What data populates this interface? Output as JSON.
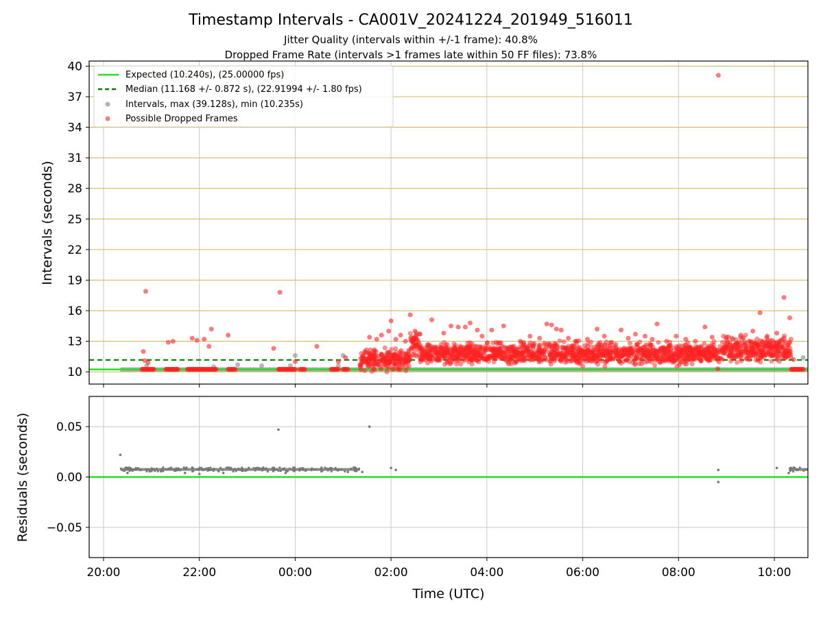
{
  "figure": {
    "title": "Timestamp Intervals - CA001V_20241224_201949_516011",
    "subtitle_1": "Jitter Quality (intervals within +/-1 frame): 40.8%",
    "subtitle_2": "Dropped Frame Rate (intervals >1 frames late within 50 FF files): 73.8%"
  },
  "chart_data": [
    {
      "type": "scatter",
      "xlabel": "",
      "ylabel": "Intervals (seconds)",
      "x_unit": "hours (UTC, 24 = midnight)",
      "xlim": [
        19.7,
        34.7
      ],
      "ylim": [
        8.8,
        40.5
      ],
      "y_ticks": [
        10,
        13,
        16,
        19,
        22,
        25,
        28,
        31,
        34,
        37,
        40
      ],
      "y_tick_labels": [
        "10",
        "13",
        "16",
        "19",
        "22",
        "25",
        "28",
        "31",
        "34",
        "37",
        "40"
      ],
      "x_ticks": [
        20,
        22,
        24,
        26,
        28,
        30,
        32,
        34
      ],
      "grid": true,
      "horizontal_grid_color": "#d2b864",
      "legend_position": "top-left",
      "legend": {
        "expected": "Expected (10.240s), (25.00000 fps)",
        "median": "Median (11.168 +/- 0.872 s), (22.91994 +/- 1.80 fps)",
        "intervals": "Intervals, max (39.128s), min (10.235s)",
        "dropped": "Possible Dropped Frames"
      },
      "expected_line": {
        "y": 10.24,
        "color": "#22e022"
      },
      "median_line": {
        "y": 11.168,
        "color": "#007a00"
      },
      "intervals_color": "#888888",
      "dropped_color": "#ff2222",
      "interval_baseline": {
        "x_start": 20.35,
        "x_end": 34.7,
        "y": 10.24
      },
      "normal_intervals": [
        {
          "x": 20.9,
          "y": 10.6
        },
        {
          "x": 22.3,
          "y": 10.5
        },
        {
          "x": 22.8,
          "y": 10.7
        },
        {
          "x": 23.3,
          "y": 10.6
        },
        {
          "x": 23.9,
          "y": 10.6
        },
        {
          "x": 24.0,
          "y": 11.6
        },
        {
          "x": 24.9,
          "y": 10.6
        },
        {
          "x": 25.0,
          "y": 11.6
        },
        {
          "x": 34.6,
          "y": 11.4
        }
      ],
      "dropped_frames": [
        {
          "x": 20.83,
          "y": 12.0
        },
        {
          "x": 20.88,
          "y": 17.9
        },
        {
          "x": 20.86,
          "y": 11.1
        },
        {
          "x": 20.93,
          "y": 10.9
        },
        {
          "x": 21.35,
          "y": 12.9
        },
        {
          "x": 21.45,
          "y": 13.0
        },
        {
          "x": 21.85,
          "y": 13.3
        },
        {
          "x": 21.95,
          "y": 13.1
        },
        {
          "x": 22.1,
          "y": 13.2
        },
        {
          "x": 22.2,
          "y": 12.5
        },
        {
          "x": 22.25,
          "y": 14.2
        },
        {
          "x": 22.6,
          "y": 13.6
        },
        {
          "x": 23.55,
          "y": 12.3
        },
        {
          "x": 23.68,
          "y": 17.8
        },
        {
          "x": 24.0,
          "y": 11.0
        },
        {
          "x": 24.45,
          "y": 12.5
        },
        {
          "x": 24.9,
          "y": 11.0
        },
        {
          "x": 25.05,
          "y": 11.4
        },
        {
          "x": 25.55,
          "y": 13.4
        },
        {
          "x": 25.7,
          "y": 13.2
        },
        {
          "x": 25.8,
          "y": 13.6
        },
        {
          "x": 25.95,
          "y": 14.0
        },
        {
          "x": 26.0,
          "y": 15.0
        },
        {
          "x": 26.1,
          "y": 13.2
        },
        {
          "x": 26.2,
          "y": 13.6
        },
        {
          "x": 26.3,
          "y": 13.0
        },
        {
          "x": 26.4,
          "y": 15.6
        },
        {
          "x": 26.5,
          "y": 14.0
        },
        {
          "x": 26.6,
          "y": 13.7
        },
        {
          "x": 26.85,
          "y": 15.1
        },
        {
          "x": 27.1,
          "y": 13.8
        },
        {
          "x": 27.25,
          "y": 14.5
        },
        {
          "x": 27.4,
          "y": 14.4
        },
        {
          "x": 27.55,
          "y": 14.4
        },
        {
          "x": 27.65,
          "y": 14.8
        },
        {
          "x": 27.8,
          "y": 14.1
        },
        {
          "x": 27.9,
          "y": 13.5
        },
        {
          "x": 28.1,
          "y": 14.1
        },
        {
          "x": 28.35,
          "y": 14.5
        },
        {
          "x": 28.7,
          "y": 13.0
        },
        {
          "x": 28.9,
          "y": 13.5
        },
        {
          "x": 29.1,
          "y": 13.3
        },
        {
          "x": 29.25,
          "y": 14.7
        },
        {
          "x": 29.35,
          "y": 14.6
        },
        {
          "x": 29.45,
          "y": 14.2
        },
        {
          "x": 29.55,
          "y": 14.1
        },
        {
          "x": 29.7,
          "y": 13.3
        },
        {
          "x": 29.85,
          "y": 13.0
        },
        {
          "x": 30.1,
          "y": 13.2
        },
        {
          "x": 30.3,
          "y": 14.2
        },
        {
          "x": 30.45,
          "y": 13.5
        },
        {
          "x": 30.6,
          "y": 12.9
        },
        {
          "x": 30.8,
          "y": 14.1
        },
        {
          "x": 30.95,
          "y": 13.3
        },
        {
          "x": 31.1,
          "y": 13.7
        },
        {
          "x": 31.3,
          "y": 13.5
        },
        {
          "x": 31.45,
          "y": 13.2
        },
        {
          "x": 31.55,
          "y": 14.7
        },
        {
          "x": 31.75,
          "y": 13.0
        },
        {
          "x": 31.95,
          "y": 13.5
        },
        {
          "x": 32.15,
          "y": 13.2
        },
        {
          "x": 32.35,
          "y": 13.0
        },
        {
          "x": 32.55,
          "y": 14.4
        },
        {
          "x": 32.7,
          "y": 13.4
        },
        {
          "x": 32.82,
          "y": 10.3
        },
        {
          "x": 32.83,
          "y": 39.1
        },
        {
          "x": 33.0,
          "y": 13.4
        },
        {
          "x": 33.3,
          "y": 13.6
        },
        {
          "x": 33.55,
          "y": 14.0
        },
        {
          "x": 33.7,
          "y": 15.8
        },
        {
          "x": 33.85,
          "y": 13.5
        },
        {
          "x": 34.05,
          "y": 13.8
        },
        {
          "x": 34.2,
          "y": 13.3
        },
        {
          "x": 34.2,
          "y": 17.3
        },
        {
          "x": 34.32,
          "y": 15.3
        },
        {
          "x": 34.4,
          "y": 11.2
        }
      ],
      "dropped_baseline_clusters": [
        [
          20.8,
          21.05
        ],
        [
          21.3,
          21.55
        ],
        [
          21.75,
          22.35
        ],
        [
          22.6,
          22.75
        ],
        [
          23.65,
          24.0
        ],
        [
          24.1,
          24.2
        ],
        [
          24.75,
          24.9
        ],
        [
          25.0,
          25.1
        ],
        [
          34.35,
          34.6
        ]
      ],
      "dropped_dense_band": [
        {
          "x_start": 25.35,
          "x_end": 26.4,
          "y_center": 11.2,
          "y_spread": 0.8
        },
        {
          "x_start": 26.4,
          "x_end": 26.6,
          "y_center": 12.7,
          "y_spread": 1.1
        },
        {
          "x_start": 26.6,
          "x_end": 32.9,
          "y_center": 11.8,
          "y_spread": 0.8
        },
        {
          "x_start": 32.9,
          "x_end": 34.35,
          "y_center": 12.2,
          "y_spread": 0.9
        }
      ]
    },
    {
      "type": "scatter",
      "xlabel": "Time (UTC)",
      "ylabel": "Residuals (seconds)",
      "xlim": [
        19.7,
        34.7
      ],
      "ylim": [
        -0.08,
        0.08
      ],
      "x_ticks": [
        20,
        22,
        24,
        26,
        28,
        30,
        32,
        34
      ],
      "x_tick_labels": [
        "20:00",
        "22:00",
        "00:00",
        "02:00",
        "04:00",
        "06:00",
        "08:00",
        "10:00"
      ],
      "y_ticks": [
        -0.05,
        0.0,
        0.05
      ],
      "y_tick_labels": [
        "−0.05",
        "0.00",
        "0.05"
      ],
      "grid": true,
      "zero_line": {
        "y": 0.0,
        "color": "#22e022"
      },
      "points_color": "#777777",
      "residual_band": {
        "x_start": 20.35,
        "x_end": 25.35,
        "y": 0.0075
      },
      "residual_band_2": {
        "x_start": 34.3,
        "x_end": 34.7,
        "y": 0.0075
      },
      "residual_points": [
        {
          "x": 20.35,
          "y": 0.022
        },
        {
          "x": 20.5,
          "y": 0.004
        },
        {
          "x": 21.0,
          "y": 0.006
        },
        {
          "x": 21.7,
          "y": 0.004
        },
        {
          "x": 22.0,
          "y": 0.003
        },
        {
          "x": 22.5,
          "y": 0.004
        },
        {
          "x": 23.65,
          "y": 0.047
        },
        {
          "x": 23.8,
          "y": 0.004
        },
        {
          "x": 25.1,
          "y": 0.005
        },
        {
          "x": 25.4,
          "y": 0.005
        },
        {
          "x": 25.55,
          "y": 0.05
        },
        {
          "x": 26.0,
          "y": 0.009
        },
        {
          "x": 26.1,
          "y": 0.007
        },
        {
          "x": 32.83,
          "y": 0.007
        },
        {
          "x": 32.83,
          "y": -0.005
        },
        {
          "x": 34.05,
          "y": 0.009
        },
        {
          "x": 34.3,
          "y": 0.004
        }
      ]
    }
  ]
}
